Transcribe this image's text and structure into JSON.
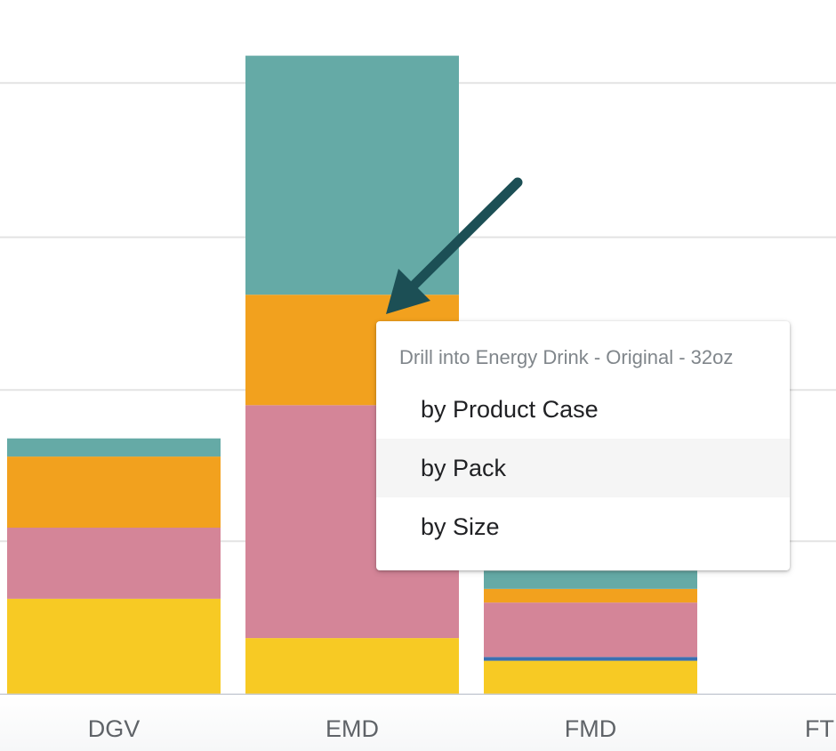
{
  "chart_data": {
    "type": "bar",
    "stacked": true,
    "categories": [
      "DGV",
      "EMD",
      "FMD",
      "FT"
    ],
    "series": [
      {
        "color": "#f7ca24",
        "values": [
          63,
          37,
          22,
          0
        ]
      },
      {
        "color": "#3a6fb0",
        "values": [
          0,
          0,
          2.5,
          0
        ]
      },
      {
        "color": "#d48598",
        "values": [
          47,
          154,
          36,
          0
        ]
      },
      {
        "color": "#f2a11e",
        "values": [
          47,
          73,
          9,
          0
        ]
      },
      {
        "color": "#65aaa6",
        "values": [
          12,
          158,
          12,
          0
        ]
      }
    ],
    "ylim": [
      0,
      420
    ],
    "gridlines": [
      101,
      201,
      302,
      404
    ],
    "grid": true,
    "legend": "none"
  },
  "context_menu": {
    "header": "Drill into Energy Drink - Original - 32oz",
    "items": [
      {
        "label": "by Product Case"
      },
      {
        "label": "by Pack"
      },
      {
        "label": "by Size"
      }
    ],
    "highlighted_index": 1
  },
  "colors": {
    "arrow": "#1c4f55",
    "gridline": "#e3e3e3",
    "axis": "#c9ced6",
    "menu_highlight": "#f5f5f5"
  },
  "icons": {
    "pointer": "arrow-icon"
  }
}
